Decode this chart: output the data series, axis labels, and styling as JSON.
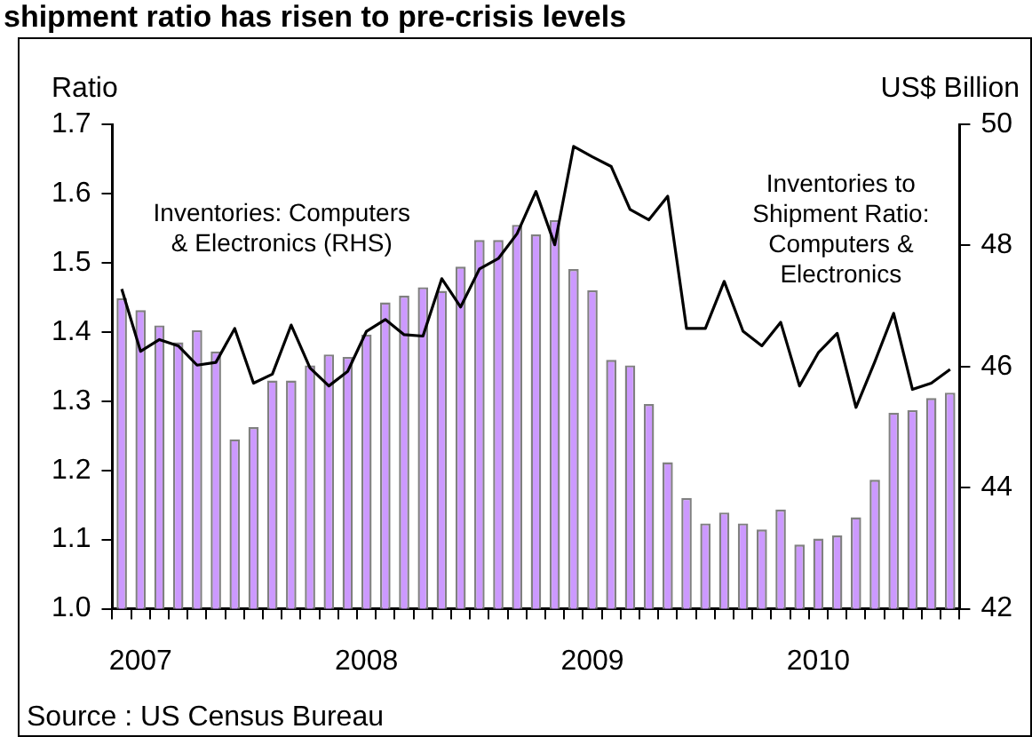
{
  "chart_data": {
    "type": "bar",
    "title": "shipment ratio has risen to pre-crisis levels",
    "ylabel": "Ratio",
    "y2label": "US$ Billion",
    "categories": [
      null,
      "2007",
      null,
      null,
      null,
      null,
      null,
      null,
      null,
      null,
      null,
      null,
      null,
      "2008",
      null,
      null,
      null,
      null,
      null,
      null,
      null,
      null,
      null,
      null,
      null,
      "2009",
      null,
      null,
      null,
      null,
      null,
      null,
      null,
      null,
      null,
      null,
      null,
      "2010",
      null,
      null,
      null,
      null,
      null,
      null,
      null
    ],
    "series": [
      {
        "name": "Inventories: Computers & Electronics (RHS)",
        "axis": "y2",
        "color": "#cc99ff",
        "values": [
          47.13,
          46.93,
          46.68,
          46.4,
          46.6,
          46.25,
          44.8,
          45.0,
          45.77,
          45.77,
          46.02,
          46.2,
          46.16,
          46.53,
          47.06,
          47.17,
          47.31,
          47.25,
          47.65,
          48.09,
          48.09,
          48.34,
          48.18,
          48.42,
          47.61,
          47.26,
          46.11,
          46.02,
          45.38,
          44.42,
          43.83,
          43.41,
          43.59,
          43.41,
          43.31,
          43.64,
          43.06,
          43.16,
          43.21,
          43.51,
          44.13,
          45.24,
          45.28,
          45.48,
          45.57
        ]
      },
      {
        "name": "Inventories to Shipment Ratio: Computers & Electronics",
        "type": "line",
        "color": "#000000",
        "values": [
          1.462,
          1.372,
          1.389,
          1.38,
          1.352,
          1.356,
          1.405,
          1.326,
          1.339,
          1.41,
          1.348,
          1.322,
          1.343,
          1.401,
          1.418,
          1.396,
          1.394,
          1.477,
          1.436,
          1.491,
          1.506,
          1.542,
          1.603,
          1.526,
          1.668,
          1.653,
          1.639,
          1.577,
          1.562,
          1.596,
          1.405,
          1.405,
          1.473,
          1.401,
          1.38,
          1.414,
          1.322,
          1.37,
          1.398,
          1.291,
          1.357,
          1.427,
          1.317,
          1.326,
          1.346
        ]
      }
    ],
    "ylim": [
      1.0,
      1.7
    ],
    "yticks": [
      {
        "value": 1.0,
        "label": "1.0"
      },
      1.1,
      1.2,
      1.3,
      1.4,
      1.5,
      1.6,
      1.7
    ],
    "y2lim": [
      42,
      50
    ],
    "y2ticks": [
      42,
      44,
      46,
      48,
      50
    ],
    "grid": false,
    "legend": false,
    "marker": "none",
    "line_style": "solid",
    "annotations": [
      "Source : US Census Bureau"
    ]
  }
}
